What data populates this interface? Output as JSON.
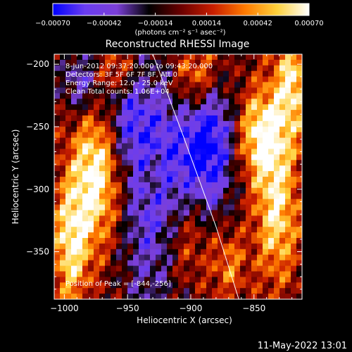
{
  "chart_data": {
    "type": "heatmap",
    "title": "Reconstructed RHESSI Image",
    "xlabel": "Heliocentric X (arcsec)",
    "ylabel": "Heliocentric Y (arcsec)",
    "xlim": [
      -1008,
      -812
    ],
    "ylim": [
      -388,
      -192
    ],
    "x_ticks": [
      -1000,
      -950,
      -900,
      -850
    ],
    "x_tick_labels": [
      "−1000",
      "−950",
      "−900",
      "−850"
    ],
    "y_ticks": [
      -200,
      -250,
      -300,
      -350
    ],
    "y_tick_labels": [
      "−200",
      "−250",
      "−300",
      "−350"
    ],
    "colorbar": {
      "min": -0.0007,
      "max": 0.0007,
      "ticks": [
        -0.0007,
        -0.00042,
        -0.00014,
        0.00014,
        0.00042,
        0.0007
      ],
      "tick_labels": [
        "−0.00070",
        "−0.00042",
        "−0.00014",
        "0.00014",
        "0.00042",
        "0.00070"
      ],
      "units": "(photons cm⁻² s⁻¹ asec⁻²)",
      "colors": [
        "#0000ff",
        "#6a3df0",
        "#7b3fd8",
        "#000000",
        "#6a0000",
        "#c81e00",
        "#ff7a00",
        "#ffd23c",
        "#ffffff"
      ]
    },
    "annotations": [
      "8-Jun-2012 09:37:20.000 to 09:43:20.000",
      "Detectors: 3F 5F 6F 7F 8F, Att 0",
      "Energy Range: 12.0 - 25.0 keV",
      "Clean     Total counts: 1.06E+04"
    ],
    "peak_label": "Position of Peak = [-844,-256]",
    "peak_position": [
      -844,
      -256
    ],
    "limb_curve": [
      [
        -930,
        -192
      ],
      [
        -905,
        -260
      ],
      [
        -880,
        -330
      ],
      [
        -862,
        -388
      ]
    ],
    "bright_regions": [
      {
        "x": -975,
        "y": -290,
        "sx": 14,
        "sy": 40,
        "amp": 0.00075
      },
      {
        "x": -995,
        "y": -345,
        "sx": 10,
        "sy": 35,
        "amp": 0.0006
      },
      {
        "x": -960,
        "y": -205,
        "sx": 12,
        "sy": 12,
        "amp": 0.00035
      },
      {
        "x": -895,
        "y": -210,
        "sx": 14,
        "sy": 22,
        "amp": 0.0006
      },
      {
        "x": -905,
        "y": -340,
        "sx": 14,
        "sy": 30,
        "amp": 0.00045
      },
      {
        "x": -844,
        "y": -256,
        "sx": 14,
        "sy": 26,
        "amp": 0.0007
      },
      {
        "x": -820,
        "y": -215,
        "sx": 10,
        "sy": 30,
        "amp": 0.0006
      },
      {
        "x": -832,
        "y": -320,
        "sx": 12,
        "sy": 38,
        "amp": 0.0006
      },
      {
        "x": -870,
        "y": -360,
        "sx": 10,
        "sy": 20,
        "amp": 0.00035
      },
      {
        "x": -930,
        "y": -290,
        "sx": 6,
        "sy": 14,
        "amp": 0.00025
      },
      {
        "x": -925,
        "y": -300,
        "sx": 22,
        "sy": 70,
        "amp": -0.0006
      },
      {
        "x": -885,
        "y": -260,
        "sx": 15,
        "sy": 40,
        "amp": -0.0007
      },
      {
        "x": -985,
        "y": -215,
        "sx": 12,
        "sy": 20,
        "amp": -0.00045
      },
      {
        "x": -950,
        "y": -245,
        "sx": 12,
        "sy": 25,
        "amp": -0.00035
      }
    ]
  },
  "footer": {
    "timestamp": "11-May-2022 13:01"
  }
}
